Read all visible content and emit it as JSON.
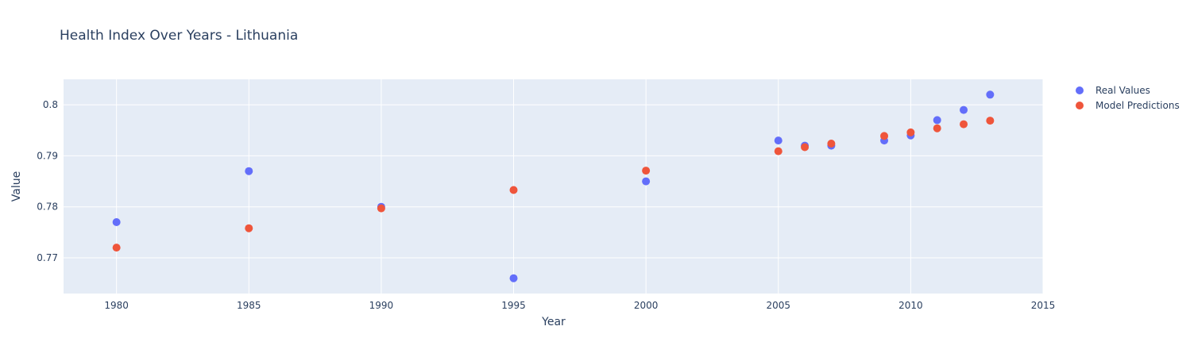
{
  "chart_data": {
    "type": "scatter",
    "title": "Health Index Over Years - Lithuania",
    "xlabel": "Year",
    "ylabel": "Value",
    "xlim": [
      1978,
      2015
    ],
    "ylim": [
      0.763,
      0.805
    ],
    "xticks": [
      1980,
      1985,
      1990,
      1995,
      2000,
      2005,
      2010,
      2015
    ],
    "yticks": [
      0.77,
      0.78,
      0.79,
      0.8
    ],
    "ytick_labels": [
      "0.77",
      "0.78",
      "0.79",
      "0.8"
    ],
    "grid": true,
    "legend_position": "top-right",
    "background_color": "#e5ecf6",
    "series": [
      {
        "name": "Real Values",
        "color": "#636efa",
        "x": [
          1980,
          1985,
          1990,
          1995,
          2000,
          2005,
          2006,
          2007,
          2009,
          2010,
          2011,
          2012,
          2013
        ],
        "y": [
          0.777,
          0.787,
          0.78,
          0.766,
          0.785,
          0.793,
          0.792,
          0.792,
          0.793,
          0.794,
          0.797,
          0.799,
          0.802
        ]
      },
      {
        "name": "Model Predictions",
        "color": "#ef553b",
        "x": [
          1980,
          1985,
          1990,
          1995,
          2000,
          2005,
          2006,
          2007,
          2009,
          2010,
          2011,
          2012,
          2013
        ],
        "y": [
          0.772,
          0.7758,
          0.7797,
          0.7833,
          0.7871,
          0.7909,
          0.7917,
          0.7924,
          0.7939,
          0.7946,
          0.7954,
          0.7962,
          0.7969
        ]
      }
    ]
  }
}
